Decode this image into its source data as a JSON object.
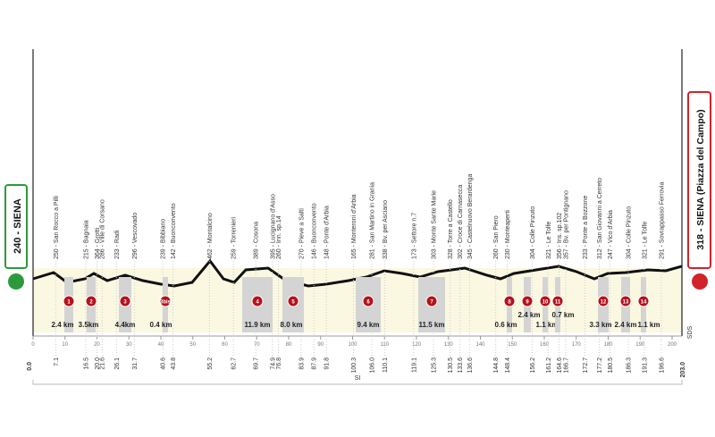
{
  "start": {
    "label": "240 - SIENA",
    "km": "0.0"
  },
  "finish": {
    "label": "318 - SIENA (Piazza del Campo)",
    "km": "203.0"
  },
  "waypoints": [
    {
      "km": "7.1",
      "name": "250 - San Rocco a Pilli"
    },
    {
      "km": "16.5",
      "name": "215 - Bagnaia"
    },
    {
      "km": "20.0",
      "name": "364 - Grotti"
    },
    {
      "km": "21.6",
      "name": "286 - Ville di Corsano"
    },
    {
      "km": "26.1",
      "name": "233 - Radi"
    },
    {
      "km": "31.7",
      "name": "296 - Vescovado"
    },
    {
      "km": "40.6",
      "name": "239 - Bibbiano"
    },
    {
      "km": "43.8",
      "name": "142 - Buonconvento"
    },
    {
      "km": "55.2",
      "name": "462 - Montalcino"
    },
    {
      "km": "62.7",
      "name": "259 - Torrenieri"
    },
    {
      "km": "69.7",
      "name": "389 - Cosona"
    },
    {
      "km": "74.9",
      "name": "395 - Lucignano d'Asso"
    },
    {
      "km": "76.8",
      "name": "260 - Inn. sp.14"
    },
    {
      "km": "83.9",
      "name": "270 - Pieve a Salti"
    },
    {
      "km": "87.9",
      "name": "146 - Buonconvento"
    },
    {
      "km": "91.8",
      "name": "148 - Ponte d'Arbia"
    },
    {
      "km": "100.3",
      "name": "165 - Monteroni d'Arbia"
    },
    {
      "km": "106.0",
      "name": "281 - San Martino in Grania"
    },
    {
      "km": "110.1",
      "name": "338 - Bv. per Asciano"
    },
    {
      "km": "119.1",
      "name": "173 - Settore n.7"
    },
    {
      "km": "125.3",
      "name": "303 - Monte Sante Marie"
    },
    {
      "km": "130.5",
      "name": "328 - Torre a Castello"
    },
    {
      "km": "133.6",
      "name": "302 - Croce di Carnasecca"
    },
    {
      "km": "136.6",
      "name": "345 - Castelnuovo Berardenga"
    },
    {
      "km": "144.8",
      "name": "260 - San Piero"
    },
    {
      "km": "148.4",
      "name": "230 - Monteaperti"
    },
    {
      "km": "156.2",
      "name": "304 - Colle Pinzuto"
    },
    {
      "km": "161.2",
      "name": "321 - Le Tolfe"
    },
    {
      "km": "164.6",
      "name": "356 - Ins. sp.102"
    },
    {
      "km": "166.7",
      "name": "357 - Bv. per Pontignano"
    },
    {
      "km": "172.7",
      "name": "233 - Ponte a Bozzone"
    },
    {
      "km": "177.2",
      "name": "312 - San Giovanni a Cerreto"
    },
    {
      "km": "180.5",
      "name": "247 - Vico d'Arbia"
    },
    {
      "km": "186.3",
      "name": "304 - Colle Pinzuto"
    },
    {
      "km": "191.3",
      "name": "321 - Le Tolfe"
    },
    {
      "km": "196.6",
      "name": "291 - Sovrappasso Ferrovia"
    }
  ],
  "sectors": [
    {
      "id": "1",
      "length": "2.4 km"
    },
    {
      "id": "2",
      "length": "3.5km"
    },
    {
      "id": "3",
      "length": "4.4km"
    },
    {
      "id": "3bis",
      "length": "0.4 km"
    },
    {
      "id": "4",
      "length": "11.9 km"
    },
    {
      "id": "5",
      "length": "8.0 km"
    },
    {
      "id": "6",
      "length": "9.4 km"
    },
    {
      "id": "7",
      "length": "11.5 km"
    },
    {
      "id": "8",
      "length": "0.6 km"
    },
    {
      "id": "9",
      "length": "2.4 km"
    },
    {
      "id": "10",
      "length": "1.1 km"
    },
    {
      "id": "11",
      "length": "0.7 km"
    },
    {
      "id": "12",
      "length": "3.3 km"
    },
    {
      "id": "13",
      "length": "2.4 km"
    },
    {
      "id": "14",
      "length": "1.1 km"
    }
  ],
  "km_ticks": [
    0,
    10,
    20,
    30,
    40,
    50,
    60,
    70,
    80,
    90,
    100,
    110,
    120,
    130,
    140,
    150,
    160,
    170,
    180,
    190,
    200
  ],
  "right_note": "SDS",
  "bottom_note": "SI"
}
